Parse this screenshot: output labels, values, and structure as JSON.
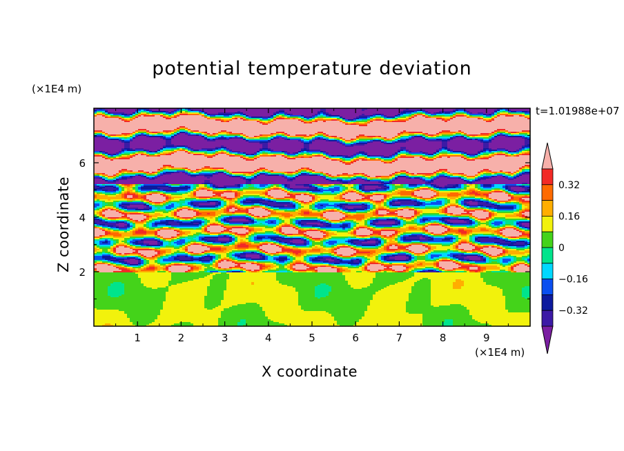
{
  "chart_data": {
    "type": "heatmap",
    "title": "potential temperature deviation",
    "time_label": "t=1.01988e+07",
    "x_unit": "(×1E4 m)",
    "y_unit": "(×1E4 m)",
    "xlabel": "X coordinate",
    "ylabel": "Z coordinate",
    "x_ticks": [
      "1",
      "2",
      "3",
      "4",
      "5",
      "6",
      "7",
      "8",
      "9"
    ],
    "y_ticks": [
      "2",
      "4",
      "6"
    ],
    "xlim": [
      0,
      10
    ],
    "ylim": [
      0,
      8
    ],
    "colorbar": {
      "labels": [
        "0.32",
        "0.16",
        "0",
        "-0.16",
        "-0.32"
      ],
      "label_text": [
        "0.32",
        "0.16",
        "0",
        "−0.16",
        "−0.32"
      ],
      "levels": [
        -0.48,
        -0.4,
        -0.32,
        -0.24,
        -0.16,
        -0.08,
        0,
        0.08,
        0.16,
        0.24,
        0.32,
        0.4,
        0.48
      ],
      "colors": [
        "#7b1fa2",
        "#3c1aa6",
        "#0d1a9e",
        "#0a4ff0",
        "#00d8ff",
        "#00e48c",
        "#44d31a",
        "#f2f20c",
        "#ffae00",
        "#ff6a00",
        "#f22a26",
        "#f7b0aa"
      ],
      "extend": "both"
    },
    "regions": [
      {
        "z_range": [
          0,
          2
        ],
        "description_level": "near zero (green / sea-green)"
      },
      {
        "z_range": [
          2,
          5.2
        ],
        "description_level": "mixed, -0.48 to 0.48"
      },
      {
        "z_range": [
          5.2,
          8
        ],
        "description_level": "alternating layers of > 0.48 (pink) and < -0.48 (purple)"
      }
    ]
  }
}
